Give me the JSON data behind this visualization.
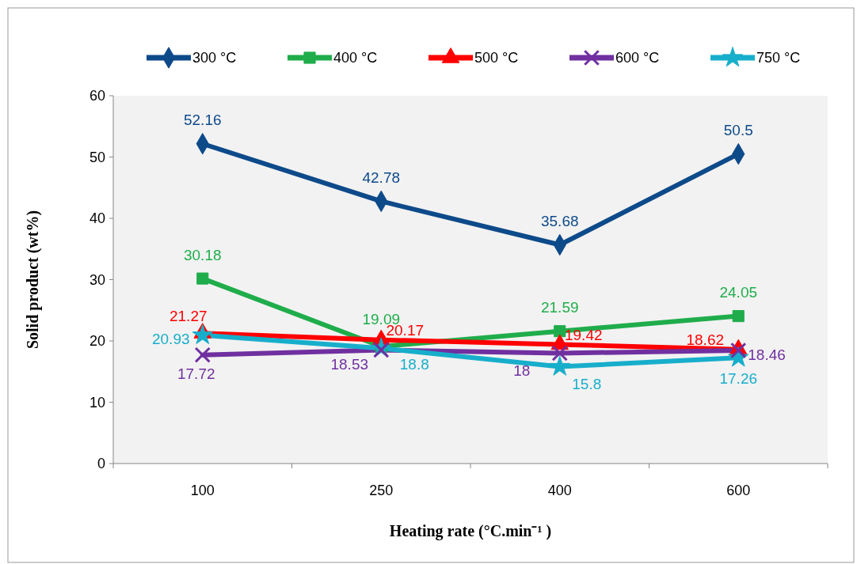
{
  "chart_data": {
    "type": "line",
    "xlabel": "Heating rate (°C.min⁻¹ )",
    "ylabel": "Solid  product (wt%)",
    "categories": [
      "100",
      "250",
      "400",
      "600"
    ],
    "ylim": [
      0,
      60
    ],
    "yticks": [
      0,
      10,
      20,
      30,
      40,
      50,
      60
    ],
    "grid": false,
    "legend": "top",
    "data_labels": true,
    "line_style": "solid",
    "series": [
      {
        "name": "300 °C",
        "color": "#0d4a8a",
        "marker": "diamond",
        "values": [
          52.16,
          42.78,
          35.68,
          50.5
        ]
      },
      {
        "name": "400 °C",
        "color": "#1fad4b",
        "marker": "square",
        "values": [
          30.18,
          19.09,
          21.59,
          24.05
        ]
      },
      {
        "name": "500 °C",
        "color": "#ff0000",
        "marker": "triangle",
        "values": [
          21.27,
          20.17,
          19.42,
          18.62
        ]
      },
      {
        "name": "600 °C",
        "color": "#7030a0",
        "marker": "cross",
        "values": [
          17.72,
          18.53,
          18,
          18.46
        ]
      },
      {
        "name": "750  °C",
        "color": "#17aecb",
        "marker": "star",
        "values": [
          20.93,
          18.8,
          15.8,
          17.26
        ]
      }
    ]
  }
}
